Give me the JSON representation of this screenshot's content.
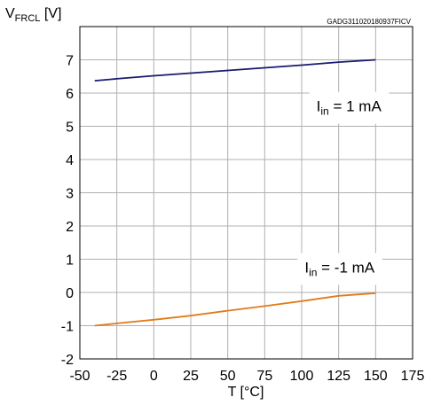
{
  "chart_data": {
    "type": "line",
    "title": "",
    "code": "GADG311020180937FICV",
    "ylabel": {
      "main": "V",
      "sub": "FRCL",
      "unit": " [V]"
    },
    "xlabel": "T [°C]",
    "xlim": [
      -50,
      175
    ],
    "ylim": [
      -2,
      8
    ],
    "xticks": [
      -50,
      -25,
      0,
      25,
      50,
      75,
      100,
      125,
      150,
      175
    ],
    "yticks": [
      -2,
      -1,
      0,
      1,
      2,
      3,
      4,
      5,
      6,
      7
    ],
    "grid": true,
    "series": [
      {
        "color": "#1a1a6e",
        "x": [
          -40,
          -25,
          0,
          25,
          50,
          75,
          100,
          125,
          150
        ],
        "y": [
          6.37,
          6.43,
          6.52,
          6.6,
          6.68,
          6.76,
          6.84,
          6.93,
          7.0
        ]
      },
      {
        "color": "#e07b1a",
        "x": [
          -40,
          -25,
          0,
          25,
          50,
          75,
          100,
          125,
          150
        ],
        "y": [
          -1.0,
          -0.93,
          -0.82,
          -0.7,
          -0.55,
          -0.41,
          -0.26,
          -0.1,
          -0.02
        ]
      }
    ],
    "annotations": [
      {
        "main": "I",
        "sub": "in",
        "rest": " = 1 mA",
        "x": 110,
        "y": 5.45
      },
      {
        "main": "I",
        "sub": "in",
        "rest": " = -1 mA",
        "x": 102,
        "y": 0.6
      }
    ]
  }
}
